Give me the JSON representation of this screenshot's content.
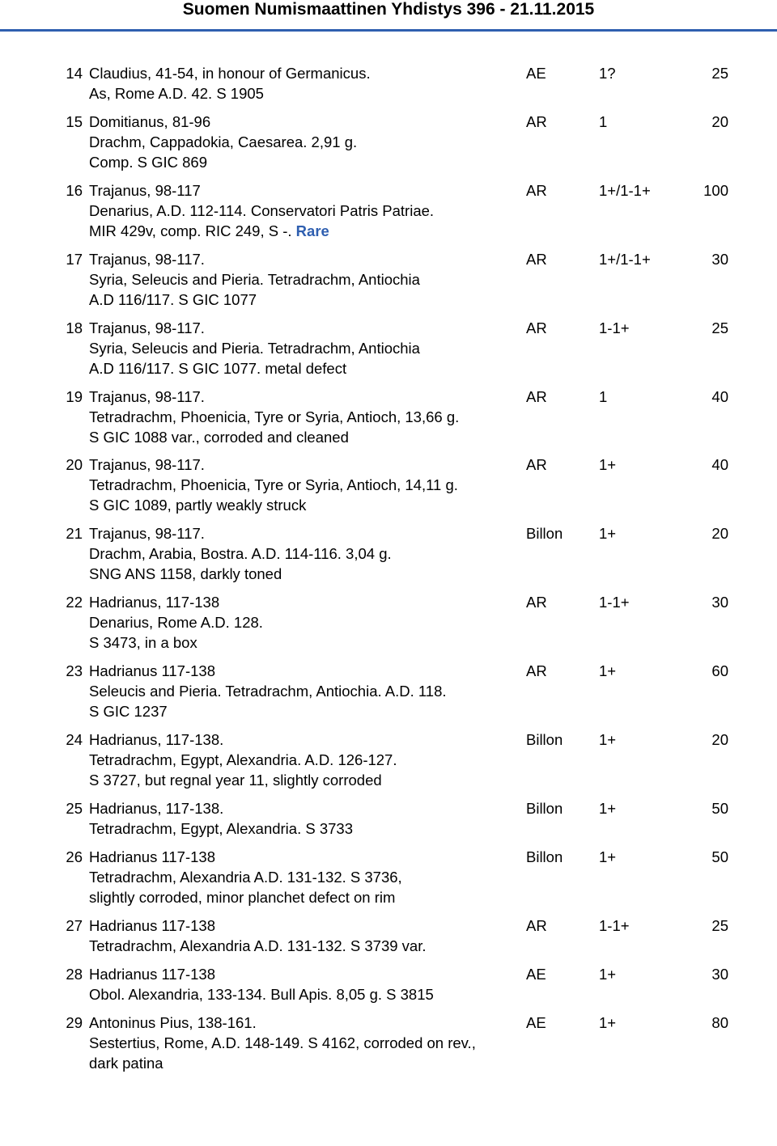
{
  "header": {
    "title": "Suomen Numismaattinen Yhdistys 396 - 21.11.2015"
  },
  "accent_color": "#2f5fb0",
  "background_color": "#ffffff",
  "text_color": "#000000",
  "font_family": "Arial",
  "base_fontsize_pt": 14,
  "header_fontsize_pt": 16,
  "columns": [
    "lot_number",
    "description",
    "metal",
    "grade",
    "estimate"
  ],
  "lots": [
    {
      "num": "14",
      "title": "Claudius, 41-54, in honour of Germanicus.",
      "line2": "As, Rome A.D. 42. S 1905",
      "metal": "AE",
      "grade": "1?",
      "price": "25"
    },
    {
      "num": "15",
      "title": "Domitianus, 81-96",
      "line2": "Drachm, Cappadokia, Caesarea. 2,91 g.",
      "line3": "Comp. S GIC 869",
      "metal": "AR",
      "grade": "1",
      "price": "20"
    },
    {
      "num": "16",
      "title": "Trajanus, 98-117",
      "line2": "Denarius, A.D. 112-114. Conservatori Patris Patriae.",
      "line3_pre": "MIR 429v, comp. RIC 249, S -. ",
      "line3_rare": "Rare",
      "metal": "AR",
      "grade": "1+/1-1+",
      "price": "100"
    },
    {
      "num": "17",
      "title": "Trajanus, 98-117.",
      "line2": "Syria, Seleucis and Pieria. Tetradrachm, Antiochia",
      "line3": "A.D 116/117. S GIC 1077",
      "metal": "AR",
      "grade": "1+/1-1+",
      "price": "30"
    },
    {
      "num": "18",
      "title": "Trajanus, 98-117.",
      "line2": "Syria, Seleucis and Pieria. Tetradrachm, Antiochia",
      "line3": "A.D 116/117. S GIC 1077. metal defect",
      "metal": "AR",
      "grade": "1-1+",
      "price": "25"
    },
    {
      "num": "19",
      "title": "Trajanus, 98-117.",
      "line2": "Tetradrachm, Phoenicia, Tyre or Syria, Antioch, 13,66 g.",
      "line3": "S GIC 1088 var., corroded and cleaned",
      "metal": "AR",
      "grade": "1",
      "price": "40"
    },
    {
      "num": "20",
      "title": "Trajanus, 98-117.",
      "line2": "Tetradrachm, Phoenicia, Tyre or Syria, Antioch, 14,11 g.",
      "line3": "S GIC 1089, partly weakly struck",
      "metal": "AR",
      "grade": "1+",
      "price": "40"
    },
    {
      "num": "21",
      "title": "Trajanus, 98-117.",
      "line2": "Drachm, Arabia, Bostra. A.D. 114-116. 3,04 g.",
      "line3": "SNG ANS 1158, darkly toned",
      "metal": "Billon",
      "grade": "1+",
      "price": "20"
    },
    {
      "num": "22",
      "title": "Hadrianus, 117-138",
      "line2": "Denarius, Rome A.D. 128.",
      "line3": "S 3473, in a box",
      "metal": "AR",
      "grade": "1-1+",
      "price": "30"
    },
    {
      "num": "23",
      "title": "Hadrianus 117-138",
      "line2": "Seleucis and Pieria. Tetradrachm, Antiochia. A.D. 118.",
      "line3": "S GIC 1237",
      "metal": "AR",
      "grade": "1+",
      "price": "60"
    },
    {
      "num": "24",
      "title": "Hadrianus, 117-138.",
      "line2": "Tetradrachm, Egypt, Alexandria. A.D. 126-127.",
      "line3": "S 3727, but regnal year 11, slightly corroded",
      "metal": "Billon",
      "grade": "1+",
      "price": "20"
    },
    {
      "num": "25",
      "title": "Hadrianus, 117-138.",
      "line2": "Tetradrachm, Egypt, Alexandria. S 3733",
      "metal": "Billon",
      "grade": "1+",
      "price": "50"
    },
    {
      "num": "26",
      "title": "Hadrianus 117-138",
      "line2": "Tetradrachm, Alexandria A.D. 131-132. S 3736,",
      "line3": "slightly corroded, minor planchet defect on rim",
      "metal": "Billon",
      "grade": "1+",
      "price": "50"
    },
    {
      "num": "27",
      "title": "Hadrianus 117-138",
      "line2": "Tetradrachm, Alexandria A.D. 131-132. S 3739 var.",
      "metal": "AR",
      "grade": "1-1+",
      "price": "25"
    },
    {
      "num": "28",
      "title": "Hadrianus 117-138",
      "line2": "Obol. Alexandria, 133-134. Bull Apis. 8,05 g. S 3815",
      "metal": "AE",
      "grade": "1+",
      "price": "30"
    },
    {
      "num": "29",
      "title": "Antoninus Pius, 138-161.",
      "line2": "Sestertius, Rome, A.D. 148-149. S 4162, corroded on rev.,",
      "line3": "dark patina",
      "metal": "AE",
      "grade": "1+",
      "price": "80"
    }
  ]
}
